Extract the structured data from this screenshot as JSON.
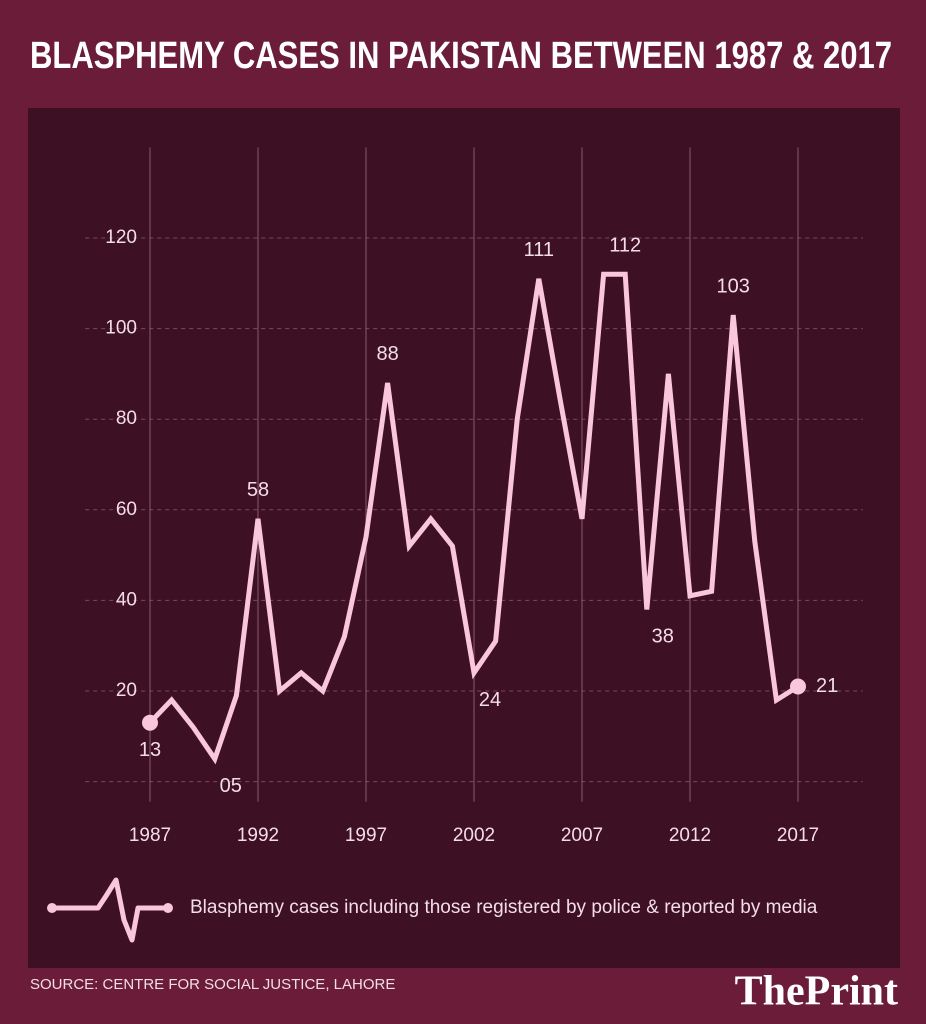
{
  "chart_data": {
    "type": "line",
    "title": "BLASPHEMY CASES IN PAKISTAN BETWEEN 1987 & 2017",
    "x": [
      1987,
      1988,
      1989,
      1990,
      1991,
      1992,
      1993,
      1994,
      1995,
      1996,
      1997,
      1998,
      1999,
      2000,
      2001,
      2002,
      2003,
      2004,
      2005,
      2006,
      2007,
      2008,
      2009,
      2010,
      2011,
      2012,
      2013,
      2014,
      2015,
      2016,
      2017
    ],
    "series": [
      {
        "name": "Blasphemy cases including those registered by police & reported by media",
        "color": "#f9c6dc",
        "values": [
          13,
          18,
          12,
          5,
          19,
          58,
          20,
          24,
          20,
          32,
          54,
          88,
          52,
          58,
          52,
          24,
          31,
          80,
          111,
          84,
          58,
          112,
          112,
          38,
          90,
          41,
          42,
          103,
          53,
          18,
          21
        ],
        "value_labels": [
          "13",
          null,
          null,
          "05",
          null,
          "58",
          null,
          null,
          null,
          null,
          null,
          "88",
          null,
          null,
          null,
          "24",
          null,
          null,
          "111",
          null,
          null,
          null,
          "112",
          "38",
          null,
          null,
          null,
          "103",
          null,
          null,
          "21"
        ]
      }
    ],
    "xlim": [
      1984,
      2020
    ],
    "xticks": [
      1987,
      1992,
      1997,
      2002,
      2007,
      2012,
      2017
    ],
    "ylim": [
      0,
      140
    ],
    "yticks": [
      20,
      40,
      60,
      80,
      100,
      120
    ],
    "grid": true,
    "source": "SOURCE: CENTRE FOR SOCIAL JUSTICE, LAHORE",
    "brand": "ThePrint"
  }
}
